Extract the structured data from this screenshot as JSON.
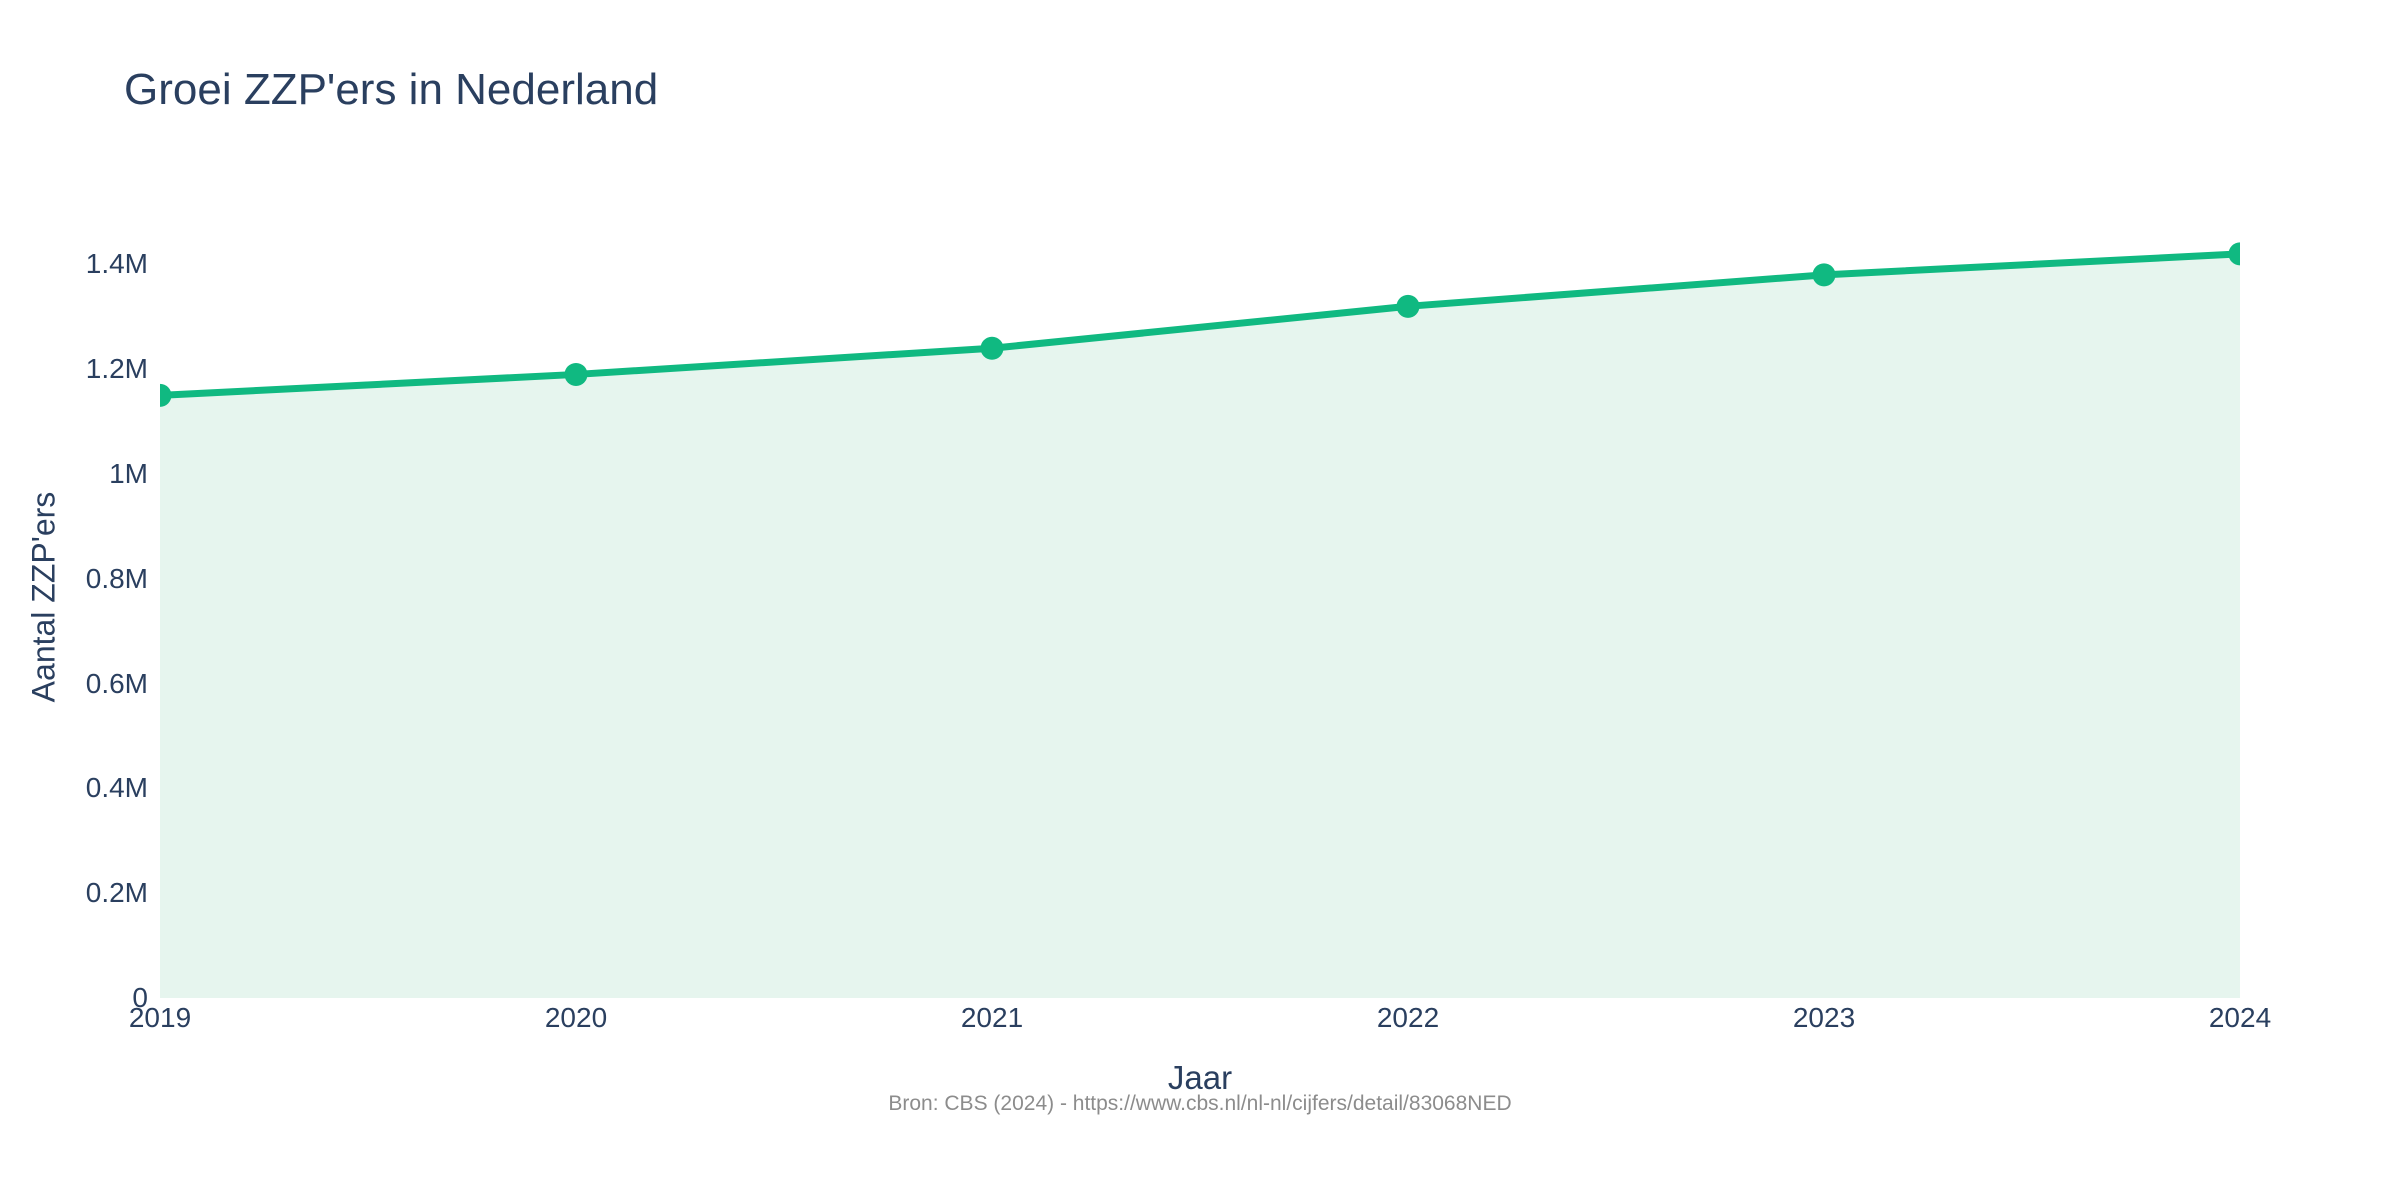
{
  "chart": {
    "title": "Groei ZZP'ers in Nederland",
    "x_axis_title": "Jaar",
    "y_axis_title": "Aantal ZZP'ers",
    "source_note": "Bron: CBS (2024) - https://www.cbs.nl/nl-nl/cijfers/detail/83068NED"
  },
  "chart_data": {
    "type": "area",
    "title": "Groei ZZP'ers in Nederland",
    "xlabel": "Jaar",
    "ylabel": "Aantal ZZP'ers",
    "x": [
      2019,
      2020,
      2021,
      2022,
      2023,
      2024
    ],
    "categories": [
      "2019",
      "2020",
      "2021",
      "2022",
      "2023",
      "2024"
    ],
    "values": [
      1150000,
      1190000,
      1240000,
      1320000,
      1380000,
      1420000
    ],
    "ylim": [
      0,
      1500000
    ],
    "yticks": {
      "values": [
        0,
        200000,
        400000,
        600000,
        800000,
        1000000,
        1200000,
        1400000
      ],
      "labels": [
        "0",
        "0.2M",
        "0.4M",
        "0.6M",
        "0.8M",
        "1M",
        "1.2M",
        "1.4M"
      ]
    },
    "grid": false,
    "legend_position": "none",
    "marker": "circle",
    "annotations": [
      "Bron: CBS (2024) - https://www.cbs.nl/nl-nl/cijfers/detail/83068NED"
    ]
  },
  "colors": {
    "line_green": "#10b981",
    "area_fill": "#e6f5ee",
    "text_dark": "#2a3f5f",
    "source_gray": "#8c8c8c",
    "background": "#ffffff"
  }
}
